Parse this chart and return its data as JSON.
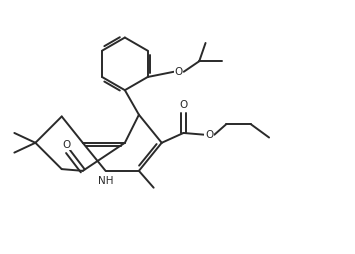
{
  "bg_color": "#ffffff",
  "line_color": "#2a2a2a",
  "line_width": 1.4,
  "figsize": [
    3.55,
    2.54
  ],
  "dpi": 100,
  "xlim": [
    0,
    10
  ],
  "ylim": [
    0,
    7.2
  ]
}
